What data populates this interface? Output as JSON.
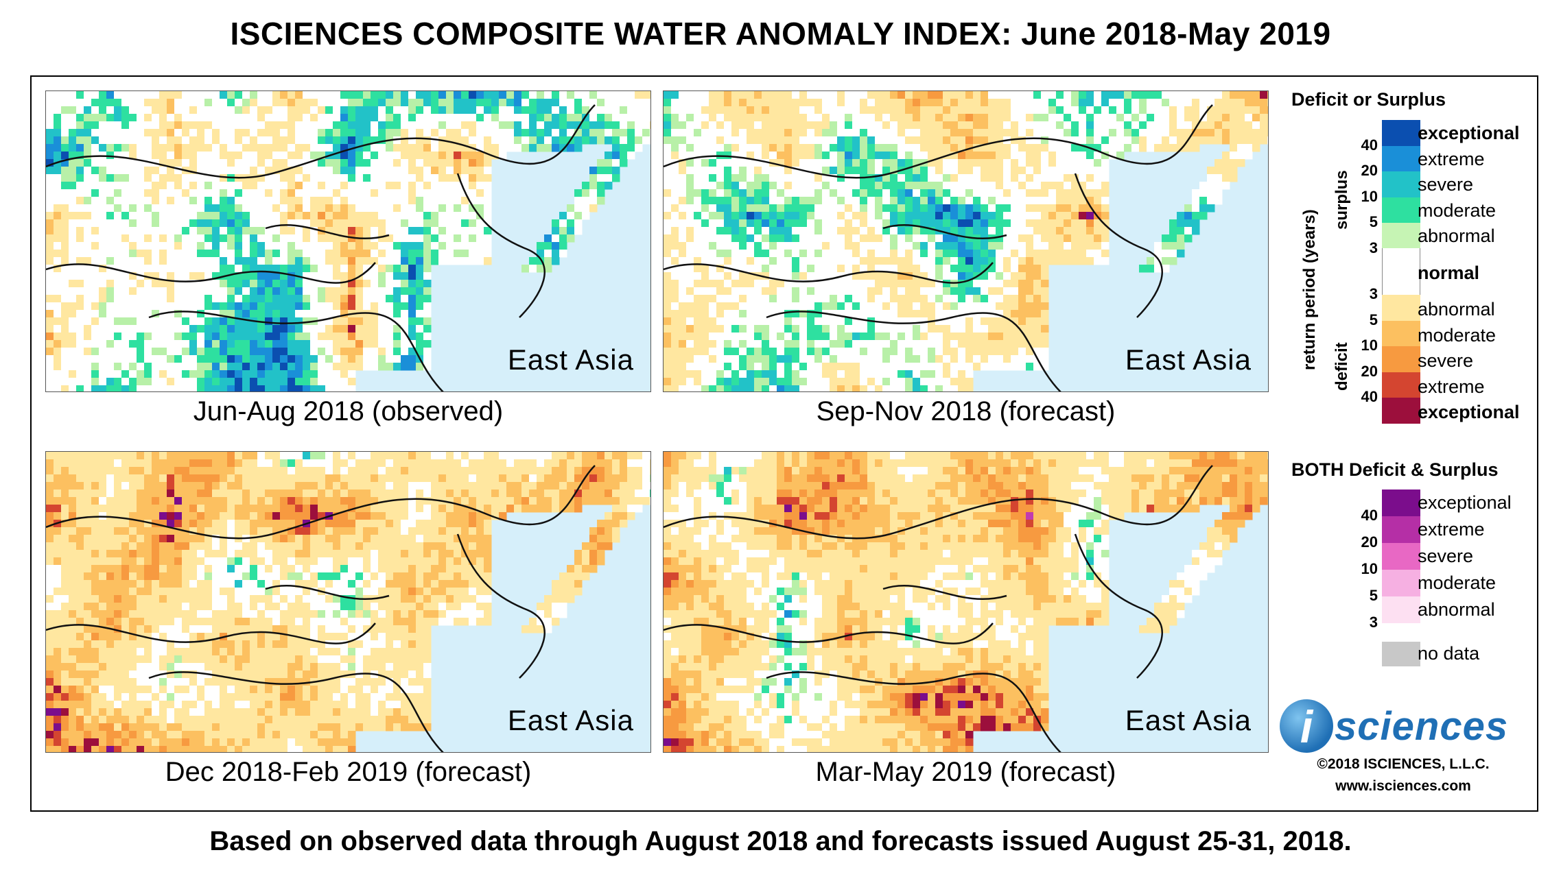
{
  "title": "ISCIENCES COMPOSITE WATER ANOMALY INDEX: June 2018-May 2019",
  "footer": "Based on observed data through August 2018 and forecasts issued August 25-31, 2018.",
  "maps": [
    {
      "region": "East Asia",
      "caption": "Jun-Aug 2018 (observed)",
      "palette": [
        "#0b4fb0",
        "#1a8fd8",
        "#22c2c8",
        "#2ee0a0",
        "#b8f0a8",
        "#ffffff",
        "#ffe7a0",
        "#fcc060",
        "#f79a40",
        "#d44530",
        "#9c0f3c",
        "#7b0d8c",
        "#c23bb0"
      ],
      "weights": [
        16,
        7,
        8,
        7,
        4,
        20,
        16,
        8,
        5,
        2,
        1,
        3,
        3
      ]
    },
    {
      "region": "East Asia",
      "caption": "Sep-Nov 2018 (forecast)",
      "palette": [
        "#0b4fb0",
        "#1a8fd8",
        "#22c2c8",
        "#2ee0a0",
        "#b8f0a8",
        "#ffffff",
        "#ffe7a0",
        "#fcc060",
        "#f79a40",
        "#d44530",
        "#9c0f3c",
        "#7b0d8c",
        "#c23bb0"
      ],
      "weights": [
        9,
        6,
        9,
        8,
        5,
        18,
        20,
        11,
        6,
        2,
        1,
        3,
        2
      ]
    },
    {
      "region": "East Asia",
      "caption": "Dec 2018-Feb 2019 (forecast)",
      "palette": [
        "#0b4fb0",
        "#1a8fd8",
        "#22c2c8",
        "#2ee0a0",
        "#b8f0a8",
        "#ffffff",
        "#ffe7a0",
        "#fcc060",
        "#f79a40",
        "#d44530",
        "#9c0f3c",
        "#7b0d8c",
        "#c23bb0"
      ],
      "weights": [
        4,
        4,
        6,
        5,
        3,
        14,
        20,
        14,
        8,
        3,
        3,
        9,
        7
      ]
    },
    {
      "region": "East Asia",
      "caption": "Mar-May 2019 (forecast)",
      "palette": [
        "#0b4fb0",
        "#1a8fd8",
        "#22c2c8",
        "#2ee0a0",
        "#b8f0a8",
        "#ffffff",
        "#ffe7a0",
        "#fcc060",
        "#f79a40",
        "#d44530",
        "#9c0f3c",
        "#7b0d8c",
        "#c23bb0"
      ],
      "weights": [
        3,
        3,
        6,
        5,
        3,
        14,
        22,
        15,
        9,
        5,
        3,
        3,
        4
      ]
    }
  ],
  "legend": {
    "section1_title": "Deficit or Surplus",
    "axis_label": "return period (years)",
    "surplus_label": "surplus",
    "deficit_label": "deficit",
    "surplus_items": [
      {
        "label": "exceptional",
        "color": "#0b4fb0",
        "bold": true
      },
      {
        "label": "extreme",
        "color": "#1a8fd8"
      },
      {
        "label": "severe",
        "color": "#22c2c8"
      },
      {
        "label": "moderate",
        "color": "#2ee0a0"
      },
      {
        "label": "abnormal",
        "color": "#c6f4b4"
      }
    ],
    "surplus_numbers": [
      "40",
      "20",
      "10",
      "5",
      "3"
    ],
    "normal": {
      "label": "normal",
      "color": "#ffffff"
    },
    "deficit_items": [
      {
        "label": "abnormal",
        "color": "#ffe7a0"
      },
      {
        "label": "moderate",
        "color": "#fcc060"
      },
      {
        "label": "severe",
        "color": "#f79a40"
      },
      {
        "label": "extreme",
        "color": "#d44530"
      },
      {
        "label": "exceptional",
        "color": "#9c0f3c",
        "bold": true
      }
    ],
    "deficit_numbers": [
      "3",
      "5",
      "10",
      "20",
      "40"
    ],
    "section2_title": "BOTH Deficit & Surplus",
    "both_items": [
      {
        "label": "exceptional",
        "color": "#7b0d8c"
      },
      {
        "label": "extreme",
        "color": "#b52fa6"
      },
      {
        "label": "severe",
        "color": "#e868c4"
      },
      {
        "label": "moderate",
        "color": "#f6b0e2"
      },
      {
        "label": "abnormal",
        "color": "#fde0f2"
      }
    ],
    "both_numbers": [
      "40",
      "20",
      "10",
      "5",
      "3"
    ],
    "nodata": {
      "label": "no data",
      "color": "#c8c8c8"
    }
  },
  "logo": {
    "letter": "i",
    "text": "sciences"
  },
  "copyright": "©2018 ISCIENCES, L.L.C.",
  "website": "www.isciences.com"
}
